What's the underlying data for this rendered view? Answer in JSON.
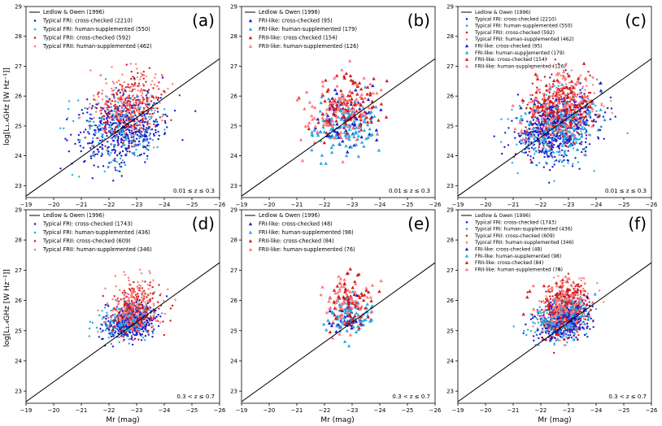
{
  "figure": {
    "ylabel": "log[L₁.₄GHz [W Hz⁻¹]]",
    "xlabel": "Mr (mag)"
  },
  "colors": {
    "typical_fri_cross": "#1f1fc8",
    "typical_fri_human": "#2aa9e0",
    "typical_frii_cross": "#d21e1e",
    "typical_frii_human": "#ff7a7a",
    "fri_like_cross": "#1f1fc8",
    "fri_like_human": "#2aa9e0",
    "frii_like_cross": "#d21e1e",
    "frii_like_human": "#ff7a7a",
    "ledlow_owen_line": "#000000"
  },
  "chart_data": [
    {
      "panel": "(a)",
      "type": "scatter",
      "xlim": [
        -19,
        -26
      ],
      "ylim": [
        22.6,
        29
      ],
      "xticks": [
        -19,
        -20,
        -21,
        -22,
        -23,
        -24,
        -25,
        -26
      ],
      "yticks": [
        23,
        24,
        25,
        26,
        27,
        28,
        29
      ],
      "annotation": "0.01 ≤ z ≤ 0.3",
      "line": {
        "label": "Ledlow & Owen (1996)",
        "x": [
          -19,
          -26
        ],
        "y": [
          22.65,
          27.25
        ]
      },
      "series": [
        {
          "name": "Typical FRI: cross-checked (2210)",
          "marker": "dot",
          "color_key": "typical_fri_cross",
          "n_shown": 480,
          "center": [
            -22.5,
            24.9
          ],
          "spread": [
            0.75,
            0.55
          ]
        },
        {
          "name": "Typical FRI: human-supplemented (550)",
          "marker": "dot",
          "color_key": "typical_fri_human",
          "n_shown": 200,
          "center": [
            -22.4,
            24.9
          ],
          "spread": [
            0.8,
            0.6
          ]
        },
        {
          "name": "Typical FRII: cross-checked (592)",
          "marker": "dot",
          "color_key": "typical_frii_cross",
          "n_shown": 220,
          "center": [
            -22.7,
            25.6
          ],
          "spread": [
            0.6,
            0.55
          ]
        },
        {
          "name": "Typical FRII: human-supplemented (462)",
          "marker": "dot",
          "color_key": "typical_frii_human",
          "n_shown": 180,
          "center": [
            -22.7,
            25.8
          ],
          "spread": [
            0.65,
            0.6
          ]
        }
      ]
    },
    {
      "panel": "(b)",
      "type": "scatter",
      "xlim": [
        -19,
        -26
      ],
      "ylim": [
        22.6,
        29
      ],
      "xticks": [
        -19,
        -20,
        -21,
        -22,
        -23,
        -24,
        -25,
        -26
      ],
      "yticks": [
        23,
        24,
        25,
        26,
        27,
        28,
        29
      ],
      "annotation": "0.01 ≤ z ≤ 0.3",
      "line": {
        "label": "Ledlow & Owen (1996)",
        "x": [
          -19,
          -26
        ],
        "y": [
          22.65,
          27.25
        ]
      },
      "series": [
        {
          "name": "FRI-like: cross-checked (95)",
          "marker": "triangle",
          "color_key": "fri_like_cross",
          "n_shown": 80,
          "center": [
            -22.7,
            25.2
          ],
          "spread": [
            0.55,
            0.45
          ]
        },
        {
          "name": "FRI-like: human-supplemented (179)",
          "marker": "triangle",
          "color_key": "fri_like_human",
          "n_shown": 120,
          "center": [
            -22.8,
            25.0
          ],
          "spread": [
            0.6,
            0.5
          ]
        },
        {
          "name": "FRII-like: cross-checked (154)",
          "marker": "triangle",
          "color_key": "frii_like_cross",
          "n_shown": 110,
          "center": [
            -22.8,
            25.6
          ],
          "spread": [
            0.6,
            0.5
          ]
        },
        {
          "name": "FRII-like: human-supplemented (126)",
          "marker": "triangle",
          "color_key": "frii_like_human",
          "n_shown": 95,
          "center": [
            -22.6,
            25.6
          ],
          "spread": [
            0.7,
            0.55
          ]
        }
      ]
    },
    {
      "panel": "(c)",
      "type": "scatter",
      "xlim": [
        -19,
        -26
      ],
      "ylim": [
        22.6,
        29
      ],
      "xticks": [
        -19,
        -20,
        -21,
        -22,
        -23,
        -24,
        -25,
        -26
      ],
      "yticks": [
        23,
        24,
        25,
        26,
        27,
        28,
        29
      ],
      "annotation": "0.01 ≤ z ≤ 0.3",
      "line": {
        "label": "Ledlow & Owen (1996)",
        "x": [
          -19,
          -26
        ],
        "y": [
          22.65,
          27.25
        ]
      },
      "series": [
        {
          "name": "Typical FRI: cross-checked (2210)",
          "marker": "dot",
          "color_key": "typical_fri_cross",
          "n_shown": 480,
          "center": [
            -22.5,
            24.9
          ],
          "spread": [
            0.75,
            0.55
          ]
        },
        {
          "name": "Typical FRI: human-supplemented (550)",
          "marker": "dot",
          "color_key": "typical_fri_human",
          "n_shown": 200,
          "center": [
            -22.4,
            24.9
          ],
          "spread": [
            0.8,
            0.6
          ]
        },
        {
          "name": "Typical FRII: cross-checked (592)",
          "marker": "dot",
          "color_key": "typical_frii_cross",
          "n_shown": 220,
          "center": [
            -22.7,
            25.6
          ],
          "spread": [
            0.6,
            0.55
          ]
        },
        {
          "name": "Typical FRII: human-supplemented (462)",
          "marker": "dot",
          "color_key": "typical_frii_human",
          "n_shown": 180,
          "center": [
            -22.7,
            25.8
          ],
          "spread": [
            0.65,
            0.6
          ]
        },
        {
          "name": "FRI-like: cross-checked (95)",
          "marker": "triangle",
          "color_key": "fri_like_cross",
          "n_shown": 60,
          "center": [
            -22.7,
            25.2
          ],
          "spread": [
            0.55,
            0.45
          ]
        },
        {
          "name": "FRI-like: human-supplemented (179)",
          "marker": "triangle",
          "color_key": "fri_like_human",
          "n_shown": 90,
          "center": [
            -22.8,
            25.0
          ],
          "spread": [
            0.6,
            0.5
          ]
        },
        {
          "name": "FRII-like: cross-checked (154)",
          "marker": "triangle",
          "color_key": "frii_like_cross",
          "n_shown": 80,
          "center": [
            -22.8,
            25.6
          ],
          "spread": [
            0.6,
            0.5
          ]
        },
        {
          "name": "FRII-like: human-supplemented (126)",
          "marker": "triangle",
          "color_key": "frii_like_human",
          "n_shown": 70,
          "center": [
            -22.6,
            25.6
          ],
          "spread": [
            0.7,
            0.55
          ]
        }
      ]
    },
    {
      "panel": "(d)",
      "type": "scatter",
      "xlim": [
        -19,
        -26
      ],
      "ylim": [
        22.6,
        29
      ],
      "xticks": [
        -19,
        -20,
        -21,
        -22,
        -23,
        -24,
        -25,
        -26
      ],
      "yticks": [
        23,
        24,
        25,
        26,
        27,
        28,
        29
      ],
      "annotation": "0.3 < z ≤ 0.7",
      "line": {
        "label": "Ledlow & Owen (1996)",
        "x": [
          -19,
          -26
        ],
        "y": [
          22.65,
          27.25
        ]
      },
      "series": [
        {
          "name": "Typical FRI: cross-checked (1743)",
          "marker": "dot",
          "color_key": "typical_fri_cross",
          "n_shown": 420,
          "center": [
            -22.8,
            25.3
          ],
          "spread": [
            0.45,
            0.3
          ]
        },
        {
          "name": "Typical FRI: human-supplemented (436)",
          "marker": "dot",
          "color_key": "typical_fri_human",
          "n_shown": 180,
          "center": [
            -22.7,
            25.35
          ],
          "spread": [
            0.5,
            0.35
          ]
        },
        {
          "name": "Typical FRII: cross-checked (609)",
          "marker": "dot",
          "color_key": "typical_frii_cross",
          "n_shown": 220,
          "center": [
            -22.9,
            25.7
          ],
          "spread": [
            0.45,
            0.4
          ]
        },
        {
          "name": "Typical FRII: human-supplemented (346)",
          "marker": "dot",
          "color_key": "typical_frii_human",
          "n_shown": 160,
          "center": [
            -22.9,
            25.9
          ],
          "spread": [
            0.5,
            0.45
          ]
        }
      ]
    },
    {
      "panel": "(e)",
      "type": "scatter",
      "xlim": [
        -19,
        -26
      ],
      "ylim": [
        22.6,
        29
      ],
      "xticks": [
        -19,
        -20,
        -21,
        -22,
        -23,
        -24,
        -25,
        -26
      ],
      "yticks": [
        23,
        24,
        25,
        26,
        27,
        28,
        29
      ],
      "annotation": "0.3 < z ≤ 0.7",
      "line": {
        "label": "Ledlow & Owen (1996)",
        "x": [
          -19,
          -26
        ],
        "y": [
          22.65,
          27.25
        ]
      },
      "series": [
        {
          "name": "FRI-like: cross-checked (48)",
          "marker": "triangle",
          "color_key": "fri_like_cross",
          "n_shown": 48,
          "center": [
            -22.9,
            25.5
          ],
          "spread": [
            0.35,
            0.3
          ]
        },
        {
          "name": "FRI-like: human-supplemented (98)",
          "marker": "triangle",
          "color_key": "fri_like_human",
          "n_shown": 80,
          "center": [
            -22.9,
            25.5
          ],
          "spread": [
            0.4,
            0.35
          ]
        },
        {
          "name": "FRII-like: cross-checked (84)",
          "marker": "triangle",
          "color_key": "frii_like_cross",
          "n_shown": 70,
          "center": [
            -22.9,
            25.9
          ],
          "spread": [
            0.4,
            0.4
          ]
        },
        {
          "name": "FRII-like: human-supplemented (76)",
          "marker": "triangle",
          "color_key": "frii_like_human",
          "n_shown": 60,
          "center": [
            -22.8,
            25.9
          ],
          "spread": [
            0.45,
            0.45
          ]
        }
      ]
    },
    {
      "panel": "(f)",
      "type": "scatter",
      "xlim": [
        -19,
        -26
      ],
      "ylim": [
        22.6,
        29
      ],
      "xticks": [
        -19,
        -20,
        -21,
        -22,
        -23,
        -24,
        -25,
        -26
      ],
      "yticks": [
        23,
        24,
        25,
        26,
        27,
        28,
        29
      ],
      "annotation": "0.3 < z ≤ 0.7",
      "line": {
        "label": "Ledlow & Owen (1996)",
        "x": [
          -19,
          -26
        ],
        "y": [
          22.65,
          27.25
        ]
      },
      "series": [
        {
          "name": "Typical FRI: cross-checked (1743)",
          "marker": "dot",
          "color_key": "typical_fri_cross",
          "n_shown": 420,
          "center": [
            -22.8,
            25.3
          ],
          "spread": [
            0.45,
            0.3
          ]
        },
        {
          "name": "Typical FRI: human-supplemented (436)",
          "marker": "dot",
          "color_key": "typical_fri_human",
          "n_shown": 180,
          "center": [
            -22.7,
            25.35
          ],
          "spread": [
            0.5,
            0.35
          ]
        },
        {
          "name": "Typical FRII: cross-checked (609)",
          "marker": "dot",
          "color_key": "typical_frii_cross",
          "n_shown": 220,
          "center": [
            -22.9,
            25.7
          ],
          "spread": [
            0.45,
            0.4
          ]
        },
        {
          "name": "Typical FRII: human-supplemented (346)",
          "marker": "dot",
          "color_key": "typical_frii_human",
          "n_shown": 160,
          "center": [
            -22.9,
            25.9
          ],
          "spread": [
            0.5,
            0.45
          ]
        },
        {
          "name": "FRI-like: cross-checked (48)",
          "marker": "triangle",
          "color_key": "fri_like_cross",
          "n_shown": 40,
          "center": [
            -22.9,
            25.5
          ],
          "spread": [
            0.35,
            0.3
          ]
        },
        {
          "name": "FRI-like: human-supplemented (98)",
          "marker": "triangle",
          "color_key": "fri_like_human",
          "n_shown": 60,
          "center": [
            -22.9,
            25.5
          ],
          "spread": [
            0.4,
            0.35
          ]
        },
        {
          "name": "FRII-like: cross-checked (84)",
          "marker": "triangle",
          "color_key": "frii_like_cross",
          "n_shown": 55,
          "center": [
            -22.9,
            25.9
          ],
          "spread": [
            0.4,
            0.4
          ]
        },
        {
          "name": "FRII-like: human-supplemented (76)",
          "marker": "triangle",
          "color_key": "frii_like_human",
          "n_shown": 50,
          "center": [
            -22.8,
            25.9
          ],
          "spread": [
            0.45,
            0.45
          ]
        }
      ]
    }
  ]
}
